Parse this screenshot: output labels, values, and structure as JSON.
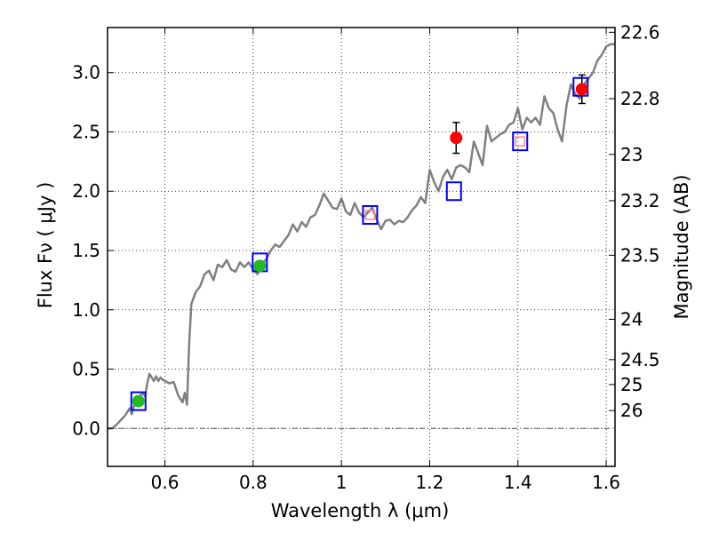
{
  "chart_data": {
    "type": "line",
    "xlabel": "Wavelength  λ (μm)",
    "ylabel": "Flux  Fν  ( μJy )",
    "y2label": "Magnitude (AB)",
    "xlim": [
      0.47,
      1.62
    ],
    "ylim": [
      -0.32,
      3.38
    ],
    "grid": true,
    "x_ticks": [
      0.6,
      0.8,
      1.0,
      1.2,
      1.4,
      1.6
    ],
    "x_tick_labels": [
      "0.6",
      "0.8",
      "1",
      "1.2",
      "1.4",
      "1.6"
    ],
    "y_ticks": [
      0.0,
      0.5,
      1.0,
      1.5,
      2.0,
      2.5,
      3.0
    ],
    "y_tick_labels": [
      "0.0",
      "0.5",
      "1.0",
      "1.5",
      "2.0",
      "2.5",
      "3.0"
    ],
    "mag_ticks": [
      {
        "label": "22.6",
        "flux": 3.34
      },
      {
        "label": "22.8",
        "flux": 2.78
      },
      {
        "label": "23",
        "flux": 2.31
      },
      {
        "label": "23.2",
        "flux": 1.92
      },
      {
        "label": "23.5",
        "flux": 1.46
      },
      {
        "label": "24",
        "flux": 0.92
      },
      {
        "label": "24.5",
        "flux": 0.58
      },
      {
        "label": "25",
        "flux": 0.37
      },
      {
        "label": "26",
        "flux": 0.15
      }
    ],
    "sed_model": {
      "color": "#808080",
      "x": [
        0.47,
        0.48,
        0.49,
        0.5,
        0.51,
        0.52,
        0.525,
        0.53,
        0.535,
        0.54,
        0.545,
        0.55,
        0.555,
        0.56,
        0.565,
        0.57,
        0.575,
        0.58,
        0.585,
        0.59,
        0.595,
        0.6,
        0.61,
        0.62,
        0.63,
        0.64,
        0.645,
        0.65,
        0.655,
        0.66,
        0.67,
        0.68,
        0.69,
        0.7,
        0.71,
        0.72,
        0.73,
        0.74,
        0.75,
        0.76,
        0.77,
        0.78,
        0.79,
        0.8,
        0.81,
        0.82,
        0.83,
        0.84,
        0.85,
        0.86,
        0.87,
        0.88,
        0.89,
        0.9,
        0.91,
        0.92,
        0.93,
        0.94,
        0.95,
        0.96,
        0.97,
        0.98,
        0.99,
        1.0,
        1.01,
        1.02,
        1.03,
        1.04,
        1.05,
        1.06,
        1.07,
        1.08,
        1.09,
        1.1,
        1.11,
        1.12,
        1.13,
        1.14,
        1.15,
        1.16,
        1.17,
        1.18,
        1.19,
        1.2,
        1.21,
        1.22,
        1.23,
        1.24,
        1.25,
        1.26,
        1.27,
        1.28,
        1.29,
        1.3,
        1.31,
        1.32,
        1.33,
        1.34,
        1.35,
        1.36,
        1.37,
        1.38,
        1.39,
        1.4,
        1.41,
        1.42,
        1.43,
        1.44,
        1.45,
        1.46,
        1.47,
        1.48,
        1.49,
        1.5,
        1.51,
        1.52,
        1.53,
        1.54,
        1.55,
        1.56,
        1.57,
        1.58,
        1.59,
        1.6,
        1.61,
        1.62
      ],
      "y": [
        0.0,
        0.0,
        0.03,
        0.07,
        0.11,
        0.17,
        0.12,
        0.19,
        0.22,
        0.23,
        0.28,
        0.3,
        0.27,
        0.38,
        0.46,
        0.43,
        0.4,
        0.44,
        0.4,
        0.43,
        0.41,
        0.4,
        0.38,
        0.39,
        0.28,
        0.22,
        0.3,
        0.2,
        0.72,
        1.05,
        1.15,
        1.2,
        1.3,
        1.33,
        1.25,
        1.38,
        1.36,
        1.42,
        1.34,
        1.32,
        1.4,
        1.36,
        1.4,
        1.34,
        1.3,
        1.38,
        1.43,
        1.5,
        1.55,
        1.53,
        1.58,
        1.63,
        1.72,
        1.66,
        1.74,
        1.7,
        1.78,
        1.8,
        1.88,
        1.98,
        1.92,
        1.86,
        1.85,
        1.94,
        1.83,
        1.8,
        1.9,
        1.82,
        1.78,
        1.82,
        1.86,
        1.76,
        1.68,
        1.75,
        1.76,
        1.72,
        1.75,
        1.74,
        1.78,
        1.84,
        1.88,
        1.95,
        1.9,
        2.18,
        2.08,
        2.0,
        2.12,
        2.18,
        2.1,
        2.2,
        2.22,
        2.2,
        2.16,
        2.42,
        2.32,
        2.22,
        2.55,
        2.42,
        2.45,
        2.48,
        2.5,
        2.56,
        2.58,
        2.7,
        2.52,
        2.62,
        2.58,
        2.62,
        2.56,
        2.8,
        2.7,
        2.66,
        2.52,
        2.42,
        2.72,
        2.9,
        2.82,
        2.78,
        2.9,
        2.95,
        3.0,
        3.1,
        3.15,
        3.22,
        3.24,
        3.24
      ]
    },
    "model_photometry": [
      {
        "x": 0.54,
        "y": 0.23
      },
      {
        "x": 0.815,
        "y": 1.4
      },
      {
        "x": 1.065,
        "y": 1.8
      },
      {
        "x": 1.255,
        "y": 2.0
      },
      {
        "x": 1.405,
        "y": 2.42
      },
      {
        "x": 1.542,
        "y": 2.88
      }
    ],
    "detections": [
      {
        "x": 0.54,
        "y": 0.23,
        "err": 0.02,
        "color": "#22bb22"
      },
      {
        "x": 0.815,
        "y": 1.37,
        "err": 0.04,
        "color": "#22bb22"
      },
      {
        "x": 1.26,
        "y": 2.45,
        "err": 0.13,
        "color": "#ff0000"
      },
      {
        "x": 1.545,
        "y": 2.86,
        "err": 0.12,
        "color": "#ff0000"
      }
    ],
    "nondetections": [
      {
        "x": 1.065,
        "y": 1.8,
        "err": 0.05,
        "color": "#ff8888"
      },
      {
        "x": 1.405,
        "y": 2.42,
        "err": 0.05,
        "color": "#ff8888"
      }
    ],
    "zero_line": 0.0
  }
}
